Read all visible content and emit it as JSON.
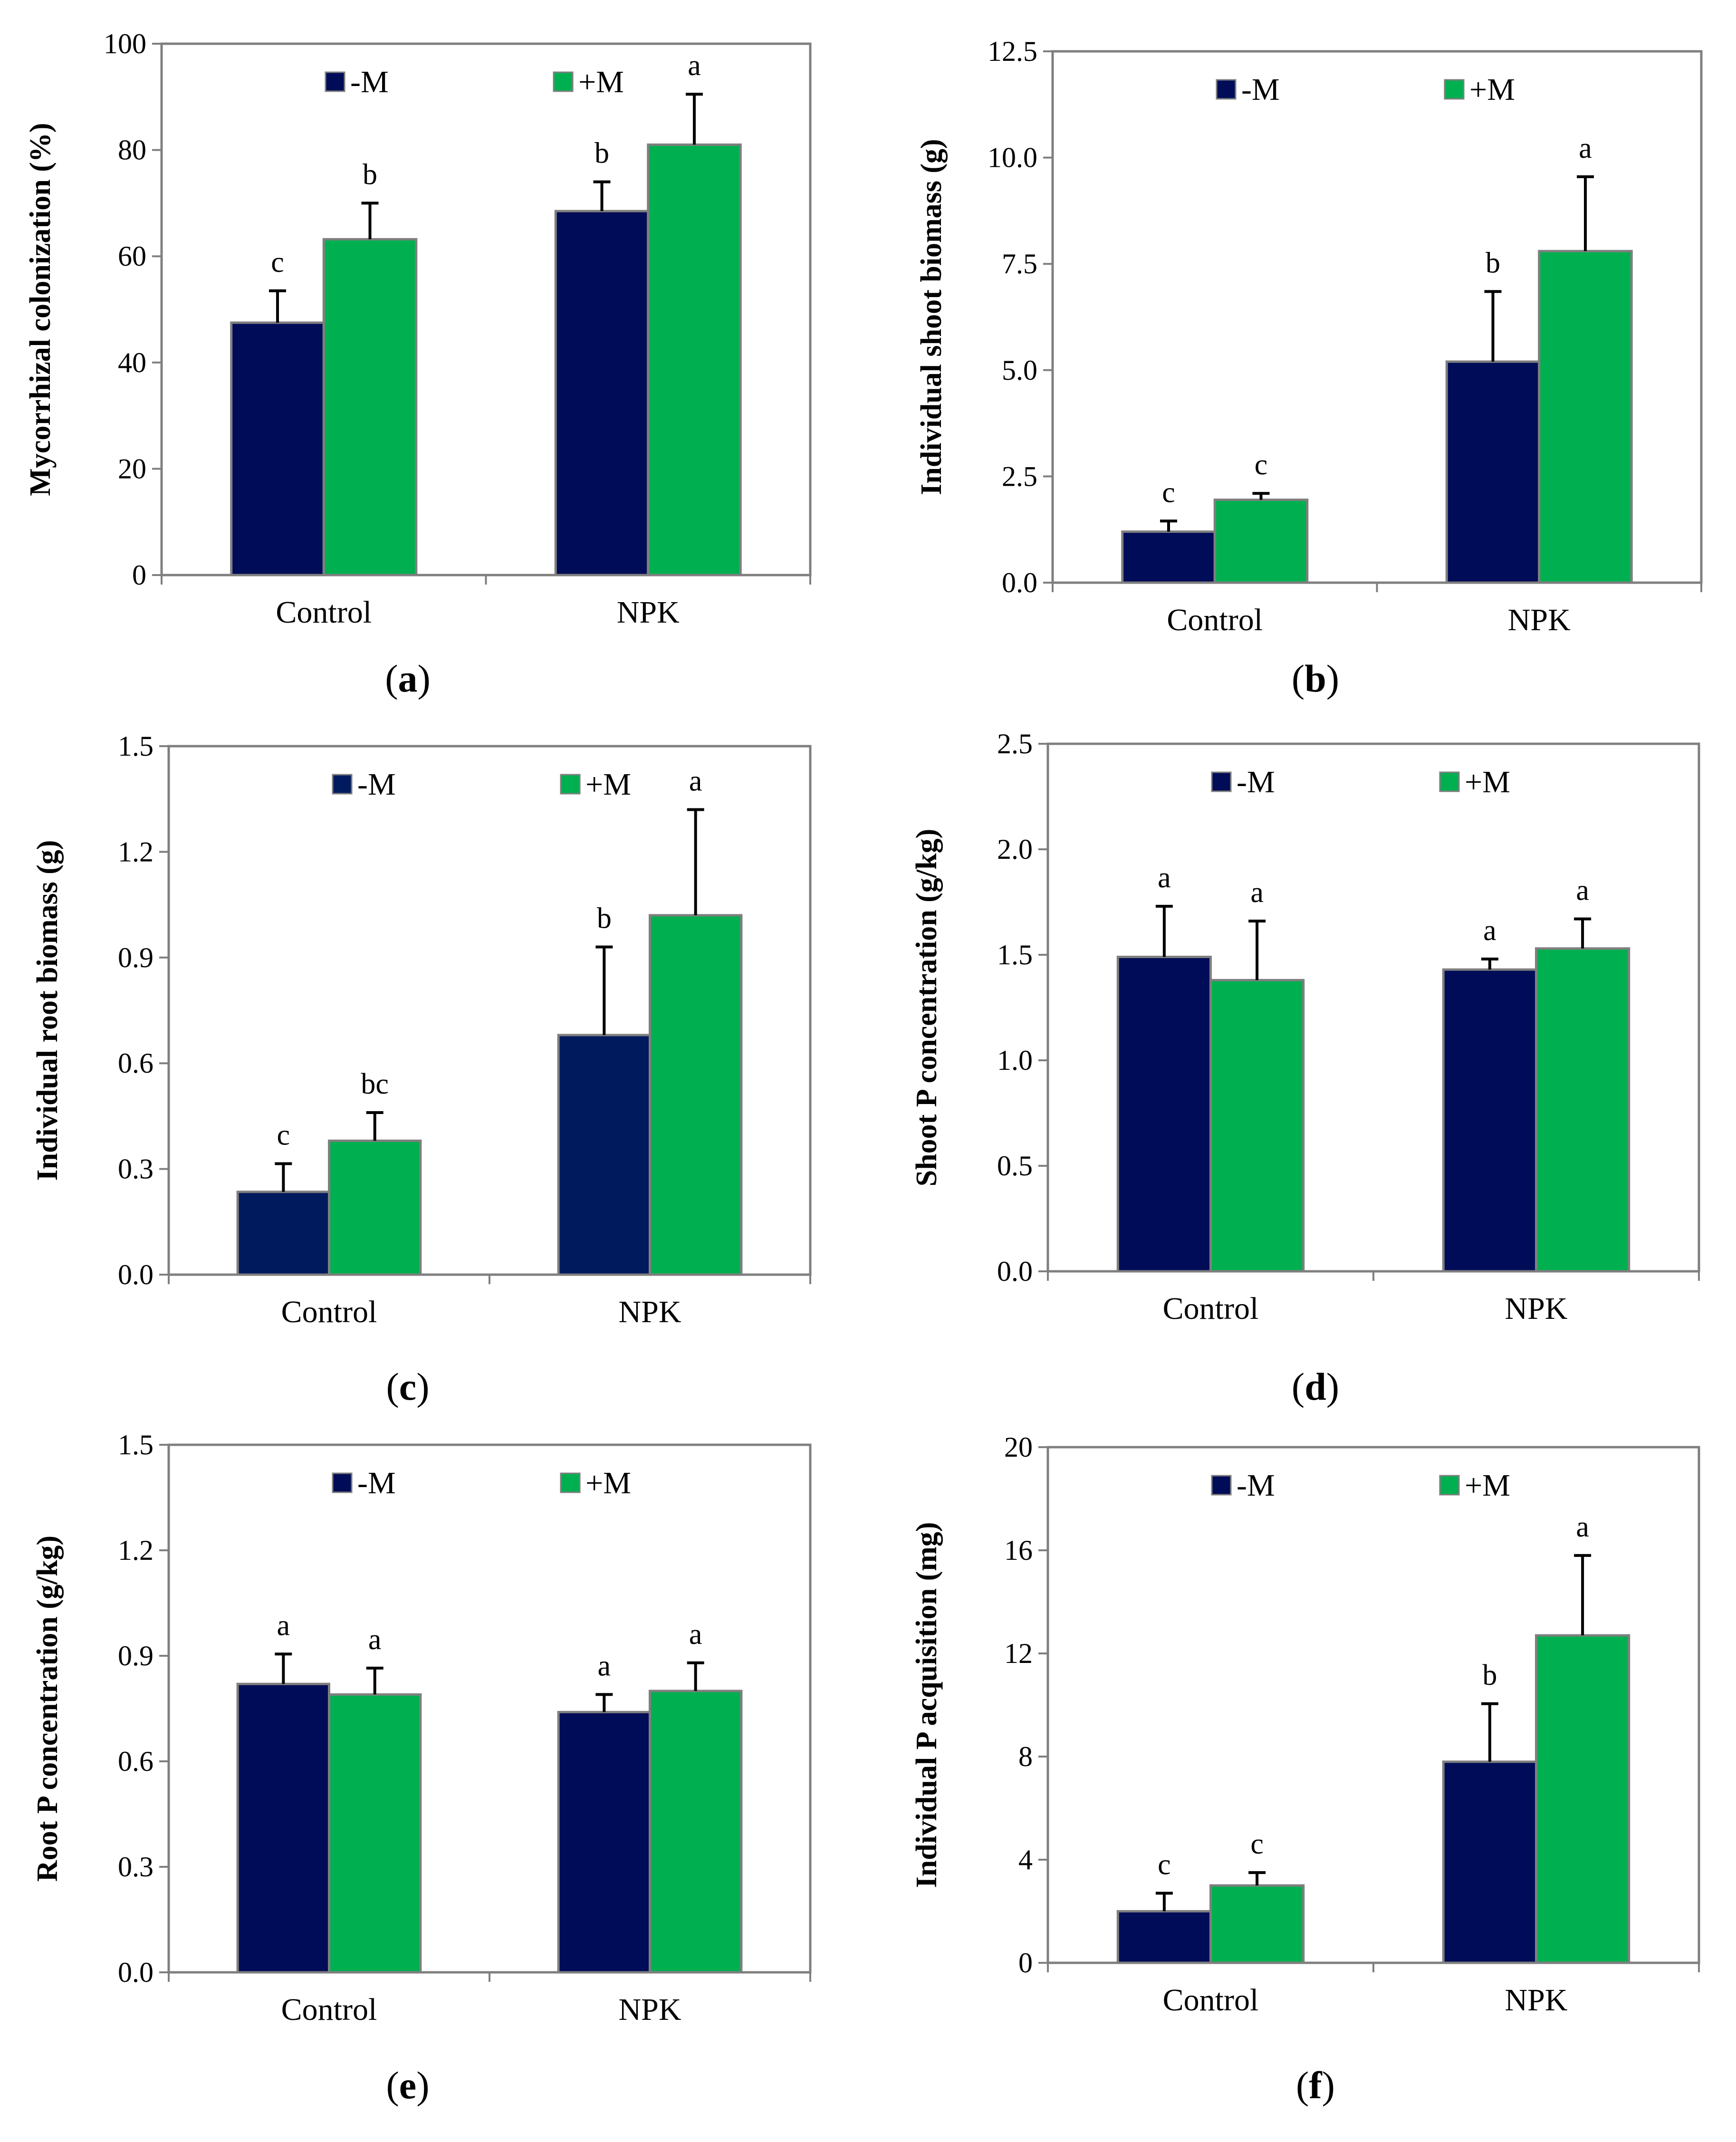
{
  "chart_data": [
    {
      "type": "bar",
      "caption": "a",
      "categories": [
        "Control",
        "NPK"
      ],
      "ylabel": "Mycorrhizal colonization (%)",
      "ylim": [
        0,
        100
      ],
      "yticks": [
        "0",
        "20",
        "40",
        "60",
        "80",
        "100"
      ],
      "series": [
        {
          "name": "-M",
          "color": "#000C57",
          "values": [
            47.5,
            68.5
          ],
          "errors": [
            6.0,
            5.5
          ],
          "labels": [
            "c",
            "b"
          ]
        },
        {
          "name": "+M",
          "color": "#00B050",
          "values": [
            63.2,
            81.0
          ],
          "errors": [
            6.8,
            9.5
          ],
          "labels": [
            "b",
            "a"
          ]
        }
      ]
    },
    {
      "type": "bar",
      "caption": "b",
      "categories": [
        "Control",
        "NPK"
      ],
      "ylabel": "Individual shoot biomass (g)",
      "ylim": [
        0,
        12.5
      ],
      "yticks": [
        "0.0",
        "2.5",
        "5.0",
        "7.5",
        "10.0",
        "12.5"
      ],
      "series": [
        {
          "name": "-M",
          "color": "#000C57",
          "values": [
            1.2,
            5.2
          ],
          "errors": [
            0.25,
            1.65
          ],
          "labels": [
            "c",
            "b"
          ]
        },
        {
          "name": "+M",
          "color": "#00B050",
          "values": [
            1.95,
            7.8
          ],
          "errors": [
            0.15,
            1.75
          ],
          "labels": [
            "c",
            "a"
          ]
        }
      ]
    },
    {
      "type": "bar",
      "caption": "c",
      "categories": [
        "Control",
        "NPK"
      ],
      "ylabel": "Individual root biomass (g)",
      "ylim": [
        0,
        1.5
      ],
      "yticks": [
        "0.0",
        "0.3",
        "0.6",
        "0.9",
        "1.2",
        "1.5"
      ],
      "series": [
        {
          "name": "-M",
          "color": "#001A5E",
          "values": [
            0.235,
            0.68
          ],
          "errors": [
            0.08,
            0.25
          ],
          "labels": [
            "c",
            "b"
          ]
        },
        {
          "name": "+M",
          "color": "#00B050",
          "values": [
            0.38,
            1.02
          ],
          "errors": [
            0.08,
            0.3
          ],
          "labels": [
            "bc",
            "a"
          ]
        }
      ]
    },
    {
      "type": "bar",
      "caption": "d",
      "categories": [
        "Control",
        "NPK"
      ],
      "ylabel": "Shoot P concentration (g/kg)",
      "ylim": [
        0,
        2.5
      ],
      "yticks": [
        "0.0",
        "0.5",
        "1.0",
        "1.5",
        "2.0",
        "2.5"
      ],
      "series": [
        {
          "name": "-M",
          "color": "#000C57",
          "values": [
            1.49,
            1.43
          ],
          "errors": [
            0.24,
            0.05
          ],
          "labels": [
            "a",
            "a"
          ]
        },
        {
          "name": "+M",
          "color": "#00B050",
          "values": [
            1.38,
            1.53
          ],
          "errors": [
            0.28,
            0.14
          ],
          "labels": [
            "a",
            "a"
          ]
        }
      ]
    },
    {
      "type": "bar",
      "caption": "e",
      "categories": [
        "Control",
        "NPK"
      ],
      "ylabel": "Root P concentration (g/kg)",
      "ylim": [
        0,
        1.5
      ],
      "yticks": [
        "0.0",
        "0.3",
        "0.6",
        "0.9",
        "1.2",
        "1.5"
      ],
      "series": [
        {
          "name": "-M",
          "color": "#000C57",
          "values": [
            0.82,
            0.74
          ],
          "errors": [
            0.085,
            0.05
          ],
          "labels": [
            "a",
            "a"
          ]
        },
        {
          "name": "+M",
          "color": "#00B050",
          "values": [
            0.79,
            0.8
          ],
          "errors": [
            0.075,
            0.08
          ],
          "labels": [
            "a",
            "a"
          ]
        }
      ]
    },
    {
      "type": "bar",
      "caption": "f",
      "categories": [
        "Control",
        "NPK"
      ],
      "ylabel": "Individual P acquisition (mg)",
      "ylim": [
        0,
        20
      ],
      "yticks": [
        "0",
        "4",
        "8",
        "12",
        "16",
        "20"
      ],
      "series": [
        {
          "name": "-M",
          "color": "#000C57",
          "values": [
            2.0,
            7.8
          ],
          "errors": [
            0.7,
            2.25
          ],
          "labels": [
            "c",
            "b"
          ]
        },
        {
          "name": "+M",
          "color": "#00B050",
          "values": [
            3.0,
            12.7
          ],
          "errors": [
            0.5,
            3.1
          ],
          "labels": [
            "c",
            "a"
          ]
        }
      ]
    }
  ]
}
